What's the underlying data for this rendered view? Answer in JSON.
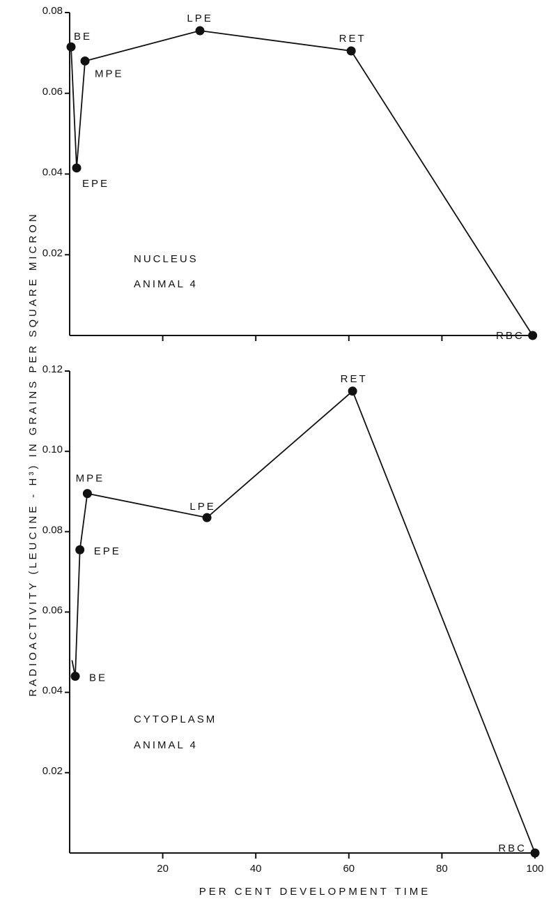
{
  "chart_data": [
    {
      "type": "line",
      "panel": "top",
      "annotation": [
        "NUCLEUS",
        "ANIMAL 4"
      ],
      "xlim": [
        0,
        100
      ],
      "ylim": [
        0,
        0.08
      ],
      "yticks": [
        0.02,
        0.04,
        0.06,
        0.08
      ],
      "ytick_labels": [
        "0.02",
        "0.04",
        "0.06",
        "0.08"
      ],
      "xticks": [
        20,
        40,
        60,
        80
      ],
      "points": [
        {
          "label": "BE",
          "x": 0.3,
          "y": 0.0715
        },
        {
          "label": "EPE",
          "x": 1.5,
          "y": 0.0415
        },
        {
          "label": "MPE",
          "x": 3.3,
          "y": 0.068
        },
        {
          "label": "LPE",
          "x": 28.0,
          "y": 0.0755
        },
        {
          "label": "RET",
          "x": 60.5,
          "y": 0.0705
        },
        {
          "label": "RBC",
          "x": 99.5,
          "y": 0.0
        }
      ]
    },
    {
      "type": "line",
      "panel": "bottom",
      "annotation": [
        "CYTOPLASM",
        "ANIMAL 4"
      ],
      "xlim": [
        0,
        100
      ],
      "ylim": [
        0,
        0.12
      ],
      "yticks": [
        0.02,
        0.04,
        0.06,
        0.08,
        0.1,
        0.12
      ],
      "ytick_labels": [
        "0.02",
        "0.04",
        "0.06",
        "0.08",
        "0.10",
        "0.12"
      ],
      "xticks": [
        20,
        40,
        60,
        80,
        100
      ],
      "xtick_labels": [
        "20",
        "40",
        "60",
        "80",
        "100"
      ],
      "points": [
        {
          "label": "BE",
          "x": 1.2,
          "y": 0.044
        },
        {
          "label": "EPE",
          "x": 2.2,
          "y": 0.0755
        },
        {
          "label": "MPE",
          "x": 3.8,
          "y": 0.0895
        },
        {
          "label": "LPE",
          "x": 29.5,
          "y": 0.0835
        },
        {
          "label": "RET",
          "x": 60.8,
          "y": 0.115
        },
        {
          "label": "RBC",
          "x": 100.0,
          "y": 0.0
        }
      ],
      "left_stub_y": 0.048
    }
  ],
  "ylabel": "RADIOACTIVITY (LEUCINE - H³) IN GRAINS PER SQUARE MICRON",
  "xlabel": "PER CENT DEVELOPMENT TIME"
}
